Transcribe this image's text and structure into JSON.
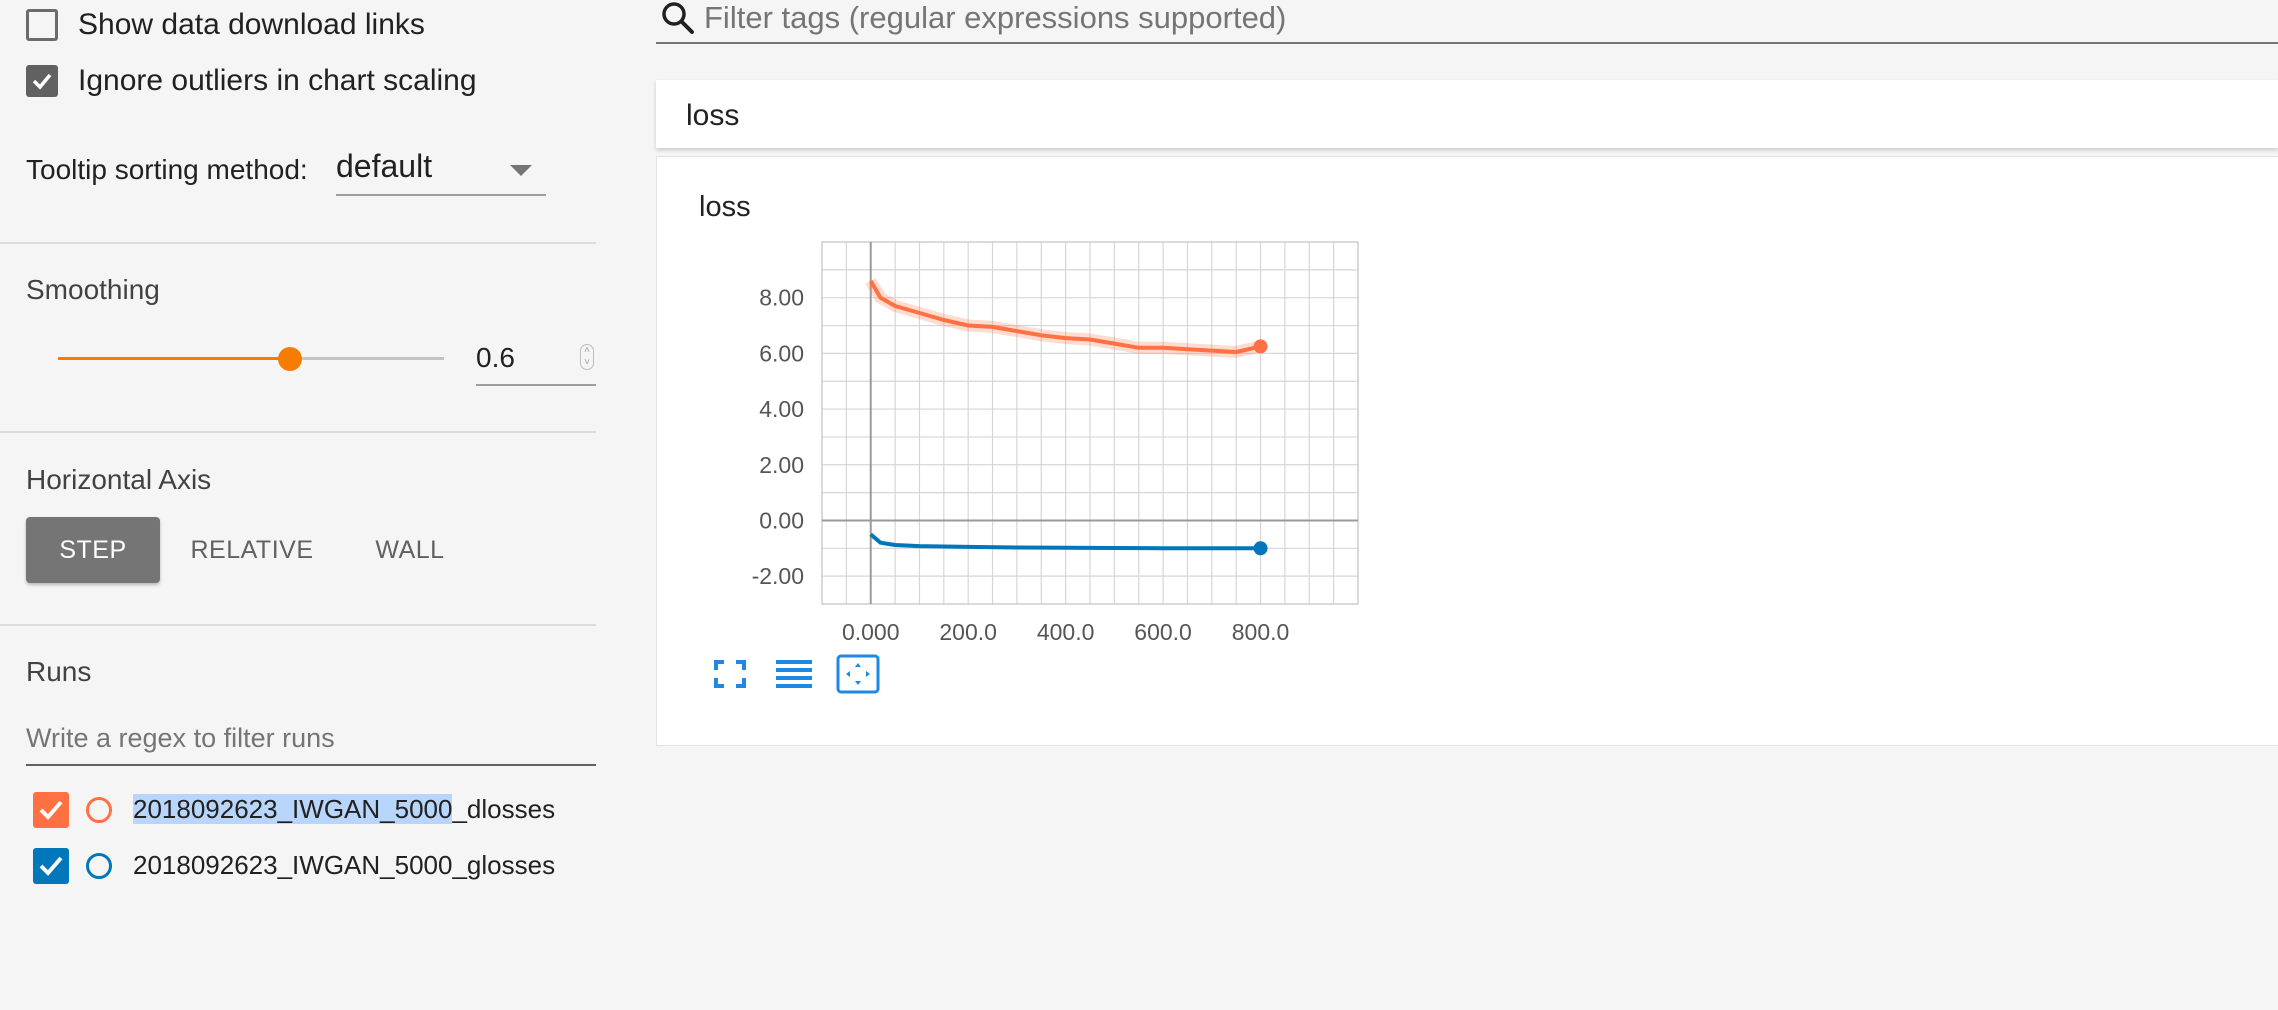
{
  "sidebar": {
    "show_download_links": {
      "label": "Show data download links",
      "checked": false
    },
    "ignore_outliers": {
      "label": "Ignore outliers in chart scaling",
      "checked": true
    },
    "tooltip_sorting": {
      "label": "Tooltip sorting method:",
      "value": "default"
    },
    "smoothing": {
      "title": "Smoothing",
      "value": "0.6",
      "slider_fraction": 0.6
    },
    "horizontal_axis": {
      "title": "Horizontal Axis",
      "options": [
        "STEP",
        "RELATIVE",
        "WALL"
      ],
      "selected": "STEP"
    },
    "runs": {
      "title": "Runs",
      "filter_placeholder": "Write a regex to filter runs",
      "items": [
        {
          "name_highlighted": "2018092623_IWGAN_5000",
          "name_rest": "_dlosses",
          "color": "#ff7043",
          "checked": true
        },
        {
          "name_highlighted": "",
          "name_rest": "2018092623_IWGAN_5000_glosses",
          "color": "#0077bb",
          "checked": true
        }
      ]
    }
  },
  "main": {
    "tag_filter_placeholder": "Filter tags (regular expressions supported)",
    "category_title": "loss",
    "card_title": "loss",
    "controls": [
      "fullscreen-icon",
      "list-icon",
      "fit-domain-icon"
    ]
  },
  "colors": {
    "accent": "#f57c00",
    "dlosses": "#ff7043",
    "glosses": "#0077bb",
    "control": "#1e88e5"
  },
  "chart_data": {
    "type": "line",
    "title": "",
    "xlabel": "",
    "ylabel": "",
    "xlim": [
      -100,
      1000
    ],
    "ylim": [
      -3,
      10
    ],
    "x_ticks": [
      0,
      200,
      400,
      600,
      800
    ],
    "x_tick_labels": [
      "0.000",
      "200.0",
      "400.0",
      "600.0",
      "800.0"
    ],
    "y_ticks": [
      -2,
      0,
      2,
      4,
      6,
      8
    ],
    "y_tick_labels": [
      "-2.00",
      "0.00",
      "2.00",
      "4.00",
      "6.00",
      "8.00"
    ],
    "grid": true,
    "series": [
      {
        "name": "2018092623_IWGAN_5000_dlosses",
        "color": "#ff7043",
        "x": [
          0,
          20,
          50,
          100,
          150,
          200,
          250,
          300,
          350,
          400,
          450,
          500,
          550,
          600,
          650,
          700,
          750,
          800
        ],
        "values": [
          8.6,
          8.0,
          7.7,
          7.45,
          7.2,
          7.0,
          6.95,
          6.8,
          6.65,
          6.55,
          6.5,
          6.35,
          6.2,
          6.2,
          6.15,
          6.1,
          6.05,
          6.25
        ]
      },
      {
        "name": "2018092623_IWGAN_5000_glosses",
        "color": "#0077bb",
        "x": [
          0,
          20,
          50,
          100,
          200,
          300,
          400,
          500,
          600,
          700,
          800
        ],
        "values": [
          -0.5,
          -0.8,
          -0.88,
          -0.92,
          -0.95,
          -0.97,
          -0.98,
          -0.99,
          -1.0,
          -1.0,
          -1.0
        ]
      }
    ]
  }
}
